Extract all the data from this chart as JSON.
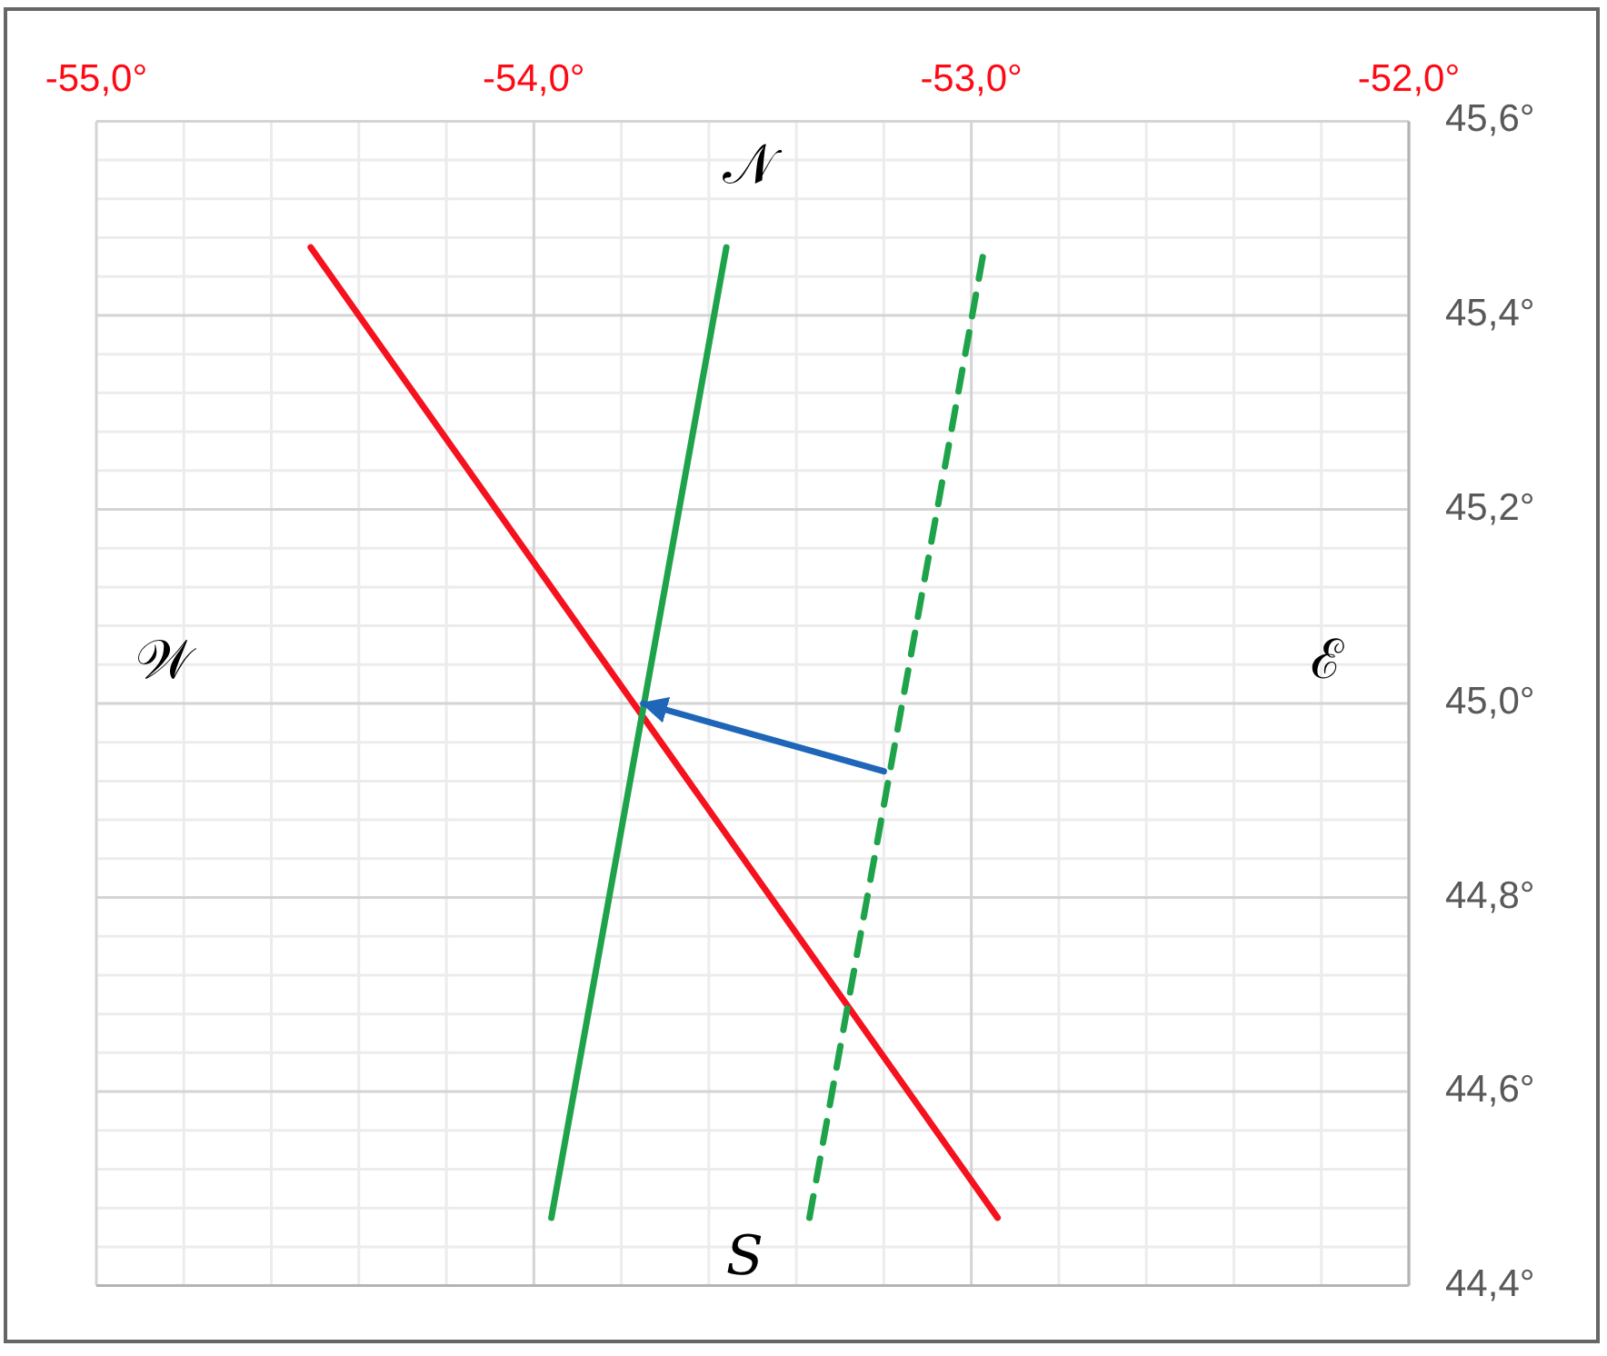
{
  "chart_data": {
    "type": "line",
    "xlim": [
      -55,
      -52
    ],
    "xticks": [
      {
        "value": -55,
        "label": "-55,0°"
      },
      {
        "value": -54.8,
        "label": null
      },
      {
        "value": -54.6,
        "label": null
      },
      {
        "value": -54.4,
        "label": null
      },
      {
        "value": -54.2,
        "label": null
      },
      {
        "value": -54,
        "label": "-54,0°"
      },
      {
        "value": -53.8,
        "label": null
      },
      {
        "value": -53.6,
        "label": null
      },
      {
        "value": -53.4,
        "label": null
      },
      {
        "value": -53.2,
        "label": null
      },
      {
        "value": -53,
        "label": "-53,0°"
      },
      {
        "value": -52.8,
        "label": null
      },
      {
        "value": -52.6,
        "label": null
      },
      {
        "value": -52.4,
        "label": null
      },
      {
        "value": -52.2,
        "label": null
      },
      {
        "value": -52,
        "label": "-52,0°"
      }
    ],
    "ylim": [
      44.4,
      45.6
    ],
    "yticks": [
      {
        "value": 44.4,
        "label": "44,4°"
      },
      {
        "value": 44.44,
        "label": null
      },
      {
        "value": 44.48,
        "label": null
      },
      {
        "value": 44.52,
        "label": null
      },
      {
        "value": 44.56,
        "label": null
      },
      {
        "value": 44.6,
        "label": "44,6°"
      },
      {
        "value": 44.64,
        "label": null
      },
      {
        "value": 44.68,
        "label": null
      },
      {
        "value": 44.72,
        "label": null
      },
      {
        "value": 44.76,
        "label": null
      },
      {
        "value": 44.8,
        "label": "44,8°"
      },
      {
        "value": 44.84,
        "label": null
      },
      {
        "value": 44.88,
        "label": null
      },
      {
        "value": 44.92,
        "label": null
      },
      {
        "value": 44.96,
        "label": null
      },
      {
        "value": 45,
        "label": "45,0°"
      },
      {
        "value": 45.04,
        "label": null
      },
      {
        "value": 45.08,
        "label": null
      },
      {
        "value": 45.12,
        "label": null
      },
      {
        "value": 45.16,
        "label": null
      },
      {
        "value": 45.2,
        "label": "45,2°"
      },
      {
        "value": 45.24,
        "label": null
      },
      {
        "value": 45.28,
        "label": null
      },
      {
        "value": 45.32,
        "label": null
      },
      {
        "value": 45.36,
        "label": null
      },
      {
        "value": 45.4,
        "label": "45,4°"
      },
      {
        "value": 45.44,
        "label": null
      },
      {
        "value": 45.48,
        "label": null
      },
      {
        "value": 45.52,
        "label": null
      },
      {
        "value": 45.56,
        "label": null
      },
      {
        "value": 45.6,
        "label": "45,6°"
      }
    ],
    "grid": true,
    "series": [
      {
        "color": "#f5121e",
        "x": [
          -54.51,
          -52.94
        ],
        "values": [
          45.47,
          44.47
        ]
      },
      {
        "color": "#1fa34a",
        "x": [
          -53.96,
          -53.56
        ],
        "values": [
          44.47,
          45.47
        ]
      },
      {
        "color": "#1fa34a",
        "line_style": "dashed",
        "x": [
          -53.37,
          -52.97
        ],
        "values": [
          44.47,
          45.47
        ]
      },
      {
        "color": "#1f66b8",
        "x": [
          -53.2,
          -53.75
        ],
        "values": [
          44.93,
          45.0
        ]
      }
    ],
    "annotations": [
      "𝒩",
      "𝒲",
      "ℰ",
      "𝑆"
    ]
  }
}
